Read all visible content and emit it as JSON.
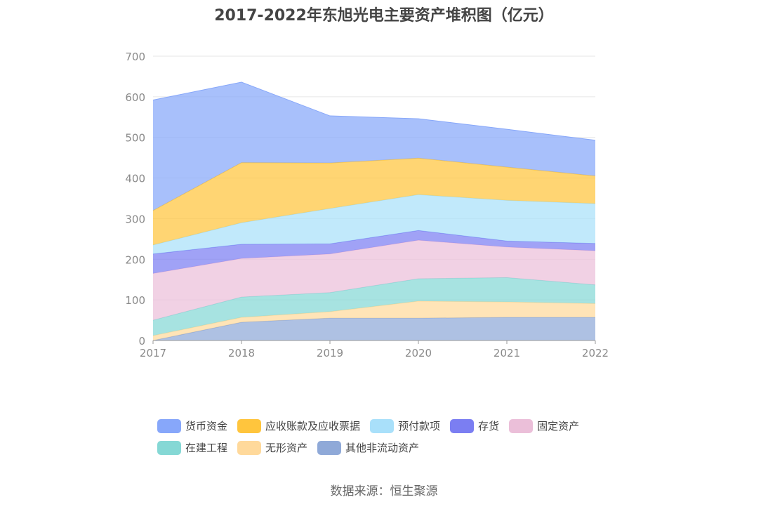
{
  "chart_data": {
    "type": "area",
    "stacked": true,
    "title": "2017-2022年东旭光电主要资产堆积图（亿元）",
    "categories": [
      "2017",
      "2018",
      "2019",
      "2020",
      "2021",
      "2022"
    ],
    "ylim": [
      0,
      700
    ],
    "yticks": [
      0,
      100,
      200,
      300,
      400,
      500,
      600,
      700
    ],
    "grid": true,
    "legend_position": "bottom",
    "series": [
      {
        "name": "其他非流动资产",
        "color": "#8fa9d8",
        "values": [
          0,
          45,
          55,
          55,
          57,
          57
        ]
      },
      {
        "name": "无形资产",
        "color": "#ffd99b",
        "values": [
          12,
          12,
          16,
          42,
          38,
          34
        ]
      },
      {
        "name": "在建工程",
        "color": "#85d8d5",
        "values": [
          38,
          50,
          47,
          55,
          60,
          46
        ]
      },
      {
        "name": "固定资产",
        "color": "#ebbfd9",
        "values": [
          115,
          95,
          95,
          95,
          75,
          84
        ]
      },
      {
        "name": "存货",
        "color": "#7b7ef2",
        "values": [
          48,
          35,
          25,
          24,
          15,
          18
        ]
      },
      {
        "name": "预付款项",
        "color": "#a9e0fa",
        "values": [
          22,
          53,
          87,
          88,
          100,
          98
        ]
      },
      {
        "name": "应收账款及应收票据",
        "color": "#ffc53d",
        "values": [
          85,
          148,
          112,
          90,
          82,
          68
        ]
      },
      {
        "name": "货币资金",
        "color": "#87a7fa",
        "values": [
          272,
          198,
          116,
          97,
          93,
          88
        ]
      }
    ]
  },
  "legend": {
    "row1": [
      {
        "label": "货币资金",
        "color": "#87a7fa"
      },
      {
        "label": "应收账款及应收票据",
        "color": "#ffc53d"
      },
      {
        "label": "预付款项",
        "color": "#a9e0fa"
      },
      {
        "label": "存货",
        "color": "#7b7ef2"
      },
      {
        "label": "固定资产",
        "color": "#ebbfd9"
      }
    ],
    "row2": [
      {
        "label": "在建工程",
        "color": "#85d8d5"
      },
      {
        "label": "无形资产",
        "color": "#ffd99b"
      },
      {
        "label": "其他非流动资产",
        "color": "#8fa9d8"
      }
    ]
  },
  "source": "数据来源：恒生聚源"
}
